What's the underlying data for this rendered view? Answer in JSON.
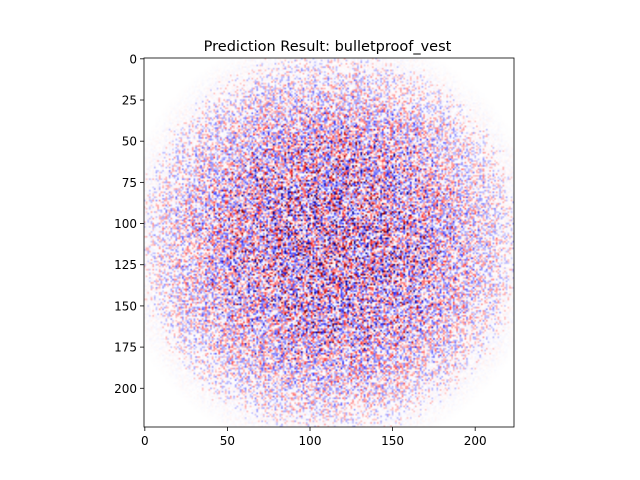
{
  "chart_data": {
    "type": "heatmap",
    "title": "Prediction Result: bulletproof_vest",
    "xlabel": "",
    "ylabel": "",
    "image_size": [
      224,
      224
    ],
    "xlim": [
      0,
      224
    ],
    "ylim": [
      224,
      0
    ],
    "x_ticks": [
      0,
      50,
      100,
      150,
      200
    ],
    "y_ticks": [
      0,
      25,
      50,
      75,
      100,
      125,
      150,
      175,
      200
    ],
    "colormap": "seismic",
    "colormap_endpoints": {
      "negative": "#0000ff",
      "zero": "#ffffff",
      "positive": "#ff0000"
    },
    "grid": false,
    "legend": "none"
  }
}
